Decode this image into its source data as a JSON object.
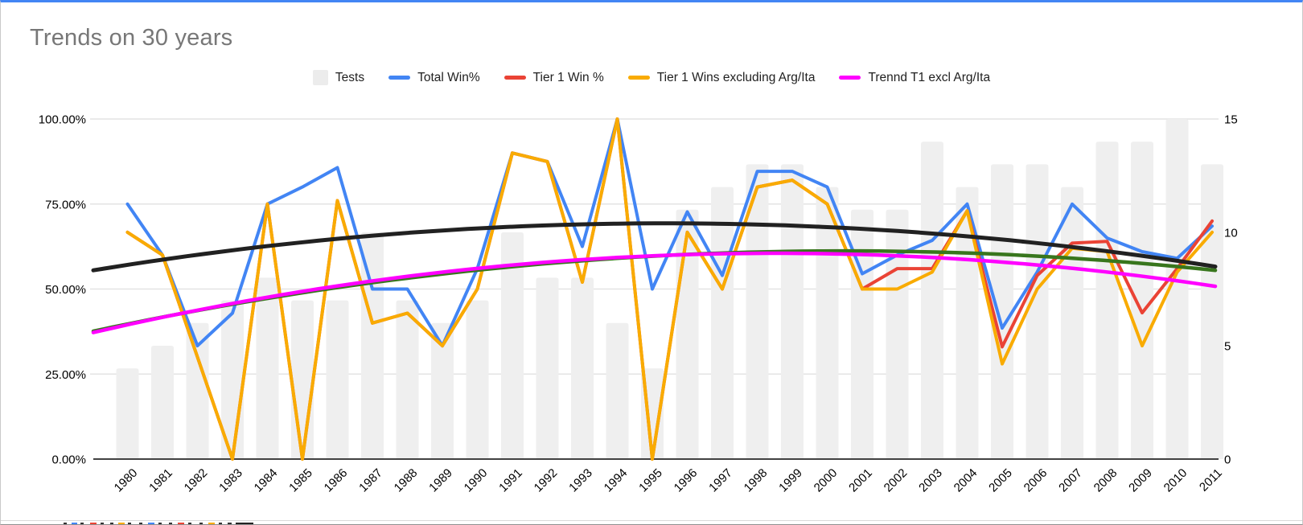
{
  "title": "Trends on 30 years",
  "legend": [
    {
      "label": "Tests",
      "color": "#ececec",
      "shape": "square"
    },
    {
      "label": "Total Win%",
      "color": "#4285f4",
      "shape": "line"
    },
    {
      "label": "Tier 1 Win %",
      "color": "#ea4335",
      "shape": "line"
    },
    {
      "label": "Tier 1 Wins excluding Arg/Ita",
      "color": "#f9ab00",
      "shape": "line"
    },
    {
      "label": "Trennd T1 excl Arg/Ita",
      "color": "#ff00ff",
      "shape": "line"
    }
  ],
  "chart_data": {
    "type": "combo",
    "title": "Trends on 30 years",
    "legend_position": "top",
    "grid": true,
    "categories": [
      1980,
      1981,
      1982,
      1983,
      1984,
      1985,
      1986,
      1987,
      1988,
      1989,
      1990,
      1991,
      1992,
      1993,
      1994,
      1995,
      1996,
      1997,
      1998,
      1999,
      2000,
      2001,
      2002,
      2003,
      2004,
      2005,
      2006,
      2007,
      2008,
      2009,
      2010,
      2011
    ],
    "left_axis": {
      "title": "",
      "format": "percent",
      "min": 0,
      "max": 100,
      "tick_labels": [
        "0.00%",
        "25.00%",
        "50.00%",
        "75.00%",
        "100.00%"
      ],
      "ticks": [
        0,
        25,
        50,
        75,
        100
      ]
    },
    "right_axis": {
      "title": "",
      "min": 0,
      "max": 15,
      "tick_labels": [
        "0",
        "5",
        "10",
        "15"
      ],
      "ticks": [
        0,
        5,
        10,
        15
      ]
    },
    "series": [
      {
        "name": "Tests",
        "type": "bar",
        "axis": "right",
        "color": "#efefef",
        "values": [
          4,
          5,
          6,
          7,
          8,
          7,
          7,
          10,
          7,
          6,
          7,
          10,
          8,
          8,
          6,
          4,
          11,
          12,
          13,
          13,
          12,
          11,
          11,
          14,
          12,
          13,
          13,
          12,
          14,
          14,
          15,
          13
        ]
      },
      {
        "name": "Total Win%",
        "type": "line",
        "axis": "left",
        "color": "#4285f4",
        "values": [
          75,
          60,
          33.3,
          42.9,
          75,
          80,
          85.7,
          50,
          50,
          33.3,
          56,
          90,
          87.5,
          62.5,
          100,
          50,
          72.7,
          54,
          84.6,
          84.6,
          80,
          54.5,
          60,
          64.3,
          75,
          38.5,
          55,
          75,
          65,
          61,
          59,
          68.5
        ]
      },
      {
        "name": "Tier 1 Win %",
        "type": "line",
        "axis": "left",
        "color": "#ea4335",
        "values": [
          66.7,
          60,
          30,
          0,
          75,
          0,
          76,
          40,
          42.9,
          33.3,
          50,
          90,
          87.5,
          52,
          100,
          0,
          66.7,
          50,
          80,
          82,
          75,
          50,
          56,
          56,
          73,
          33,
          54,
          63.5,
          64,
          43,
          56,
          70
        ]
      },
      {
        "name": "Tier 1 Wins excluding Arg/Ita",
        "type": "line",
        "axis": "left",
        "color": "#f9ab00",
        "values": [
          66.7,
          60,
          30,
          0,
          75,
          0,
          76,
          40,
          42.9,
          33.3,
          50,
          90,
          87.5,
          52,
          100,
          0,
          66.7,
          50,
          80,
          82,
          75,
          50,
          50,
          55,
          73,
          28,
          50,
          62,
          61,
          33.3,
          55,
          66.7
        ]
      }
    ],
    "trendlines": [
      {
        "name": "Trend Total Win%",
        "color": "#212121",
        "width": 5,
        "start_pct": 55.5,
        "peak_pct": 69.3,
        "peak_year": 1996,
        "end_pct": 56.6
      },
      {
        "name": "Trend Tier 1 Win %",
        "color": "#38761d",
        "width": 4.5,
        "start_pct": 37.6,
        "peak_pct": 61.2,
        "peak_year": 2001,
        "end_pct": 55.5
      },
      {
        "name": "Trennd T1 excl Arg/Ita",
        "color": "#ff00ff",
        "width": 4.5,
        "start_pct": 37.2,
        "peak_pct": 60.5,
        "peak_year": 1999,
        "end_pct": 50.8
      }
    ]
  },
  "bottom_strip": {
    "note": "top sliver of truncated content row below chart",
    "rule_color": "#d9d9d9",
    "marks": [
      {
        "x": 78,
        "w": 4,
        "color": "#333333"
      },
      {
        "x": 88,
        "w": 7,
        "color": "#4285f4"
      },
      {
        "x": 99,
        "w": 4,
        "color": "#333333"
      },
      {
        "x": 111,
        "w": 8,
        "color": "#ea4335"
      },
      {
        "x": 124,
        "w": 4,
        "color": "#333333"
      },
      {
        "x": 136,
        "w": 4,
        "color": "#333333"
      },
      {
        "x": 146,
        "w": 8,
        "color": "#f9ab00"
      },
      {
        "x": 158,
        "w": 4,
        "color": "#333333"
      },
      {
        "x": 172,
        "w": 4,
        "color": "#333333"
      },
      {
        "x": 183,
        "w": 8,
        "color": "#4285f4"
      },
      {
        "x": 196,
        "w": 4,
        "color": "#333333"
      },
      {
        "x": 209,
        "w": 4,
        "color": "#333333"
      },
      {
        "x": 220,
        "w": 8,
        "color": "#ea4335"
      },
      {
        "x": 233,
        "w": 4,
        "color": "#333333"
      },
      {
        "x": 247,
        "w": 4,
        "color": "#333333"
      },
      {
        "x": 258,
        "w": 8,
        "color": "#f9ab00"
      },
      {
        "x": 271,
        "w": 4,
        "color": "#333333"
      },
      {
        "x": 282,
        "w": 5,
        "color": "#333333"
      },
      {
        "x": 292,
        "w": 22,
        "color": "#222222"
      }
    ]
  }
}
